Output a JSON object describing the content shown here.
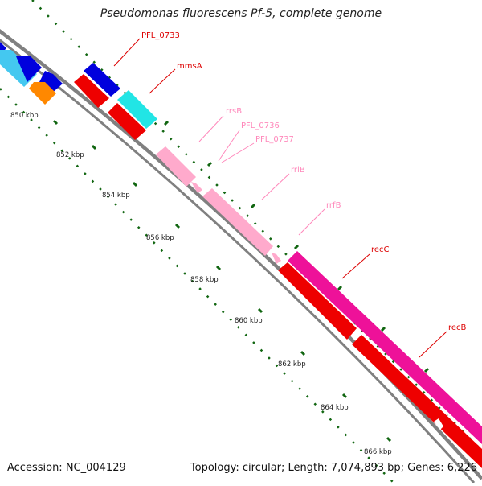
{
  "title": "Pseudomonas fluorescens Pf-5, complete genome",
  "footer": {
    "accession": "Accession: NC_004129",
    "topology": "Topology: circular; Length: 7,074,893 bp; Genes: 6,226"
  },
  "scale_labels": [
    "850 kbp",
    "852 kbp",
    "854 kbp",
    "856 kbp",
    "858 kbp",
    "860 kbp",
    "862 kbp",
    "864 kbp",
    "866 kbp"
  ],
  "gene_labels": [
    "PFL_0733",
    "mmsA",
    "rrsB",
    "PFL_0736",
    "PFL_0737",
    "rrlB",
    "rrfB",
    "recC",
    "recB"
  ],
  "colors": {
    "backbone": "#808080",
    "cds_forward": "#0000dd",
    "cds_reverse": "#ee0000",
    "cog_cyan": "#22e5e5",
    "cog_lightblue": "#44c8f0",
    "cog_orange": "#ff8800",
    "rrna": "#ffaacc",
    "rrna_label": "#ff88bb",
    "cog_magenta": "#ee1199",
    "label_red": "#dd0000",
    "tick_green": "#116611"
  }
}
